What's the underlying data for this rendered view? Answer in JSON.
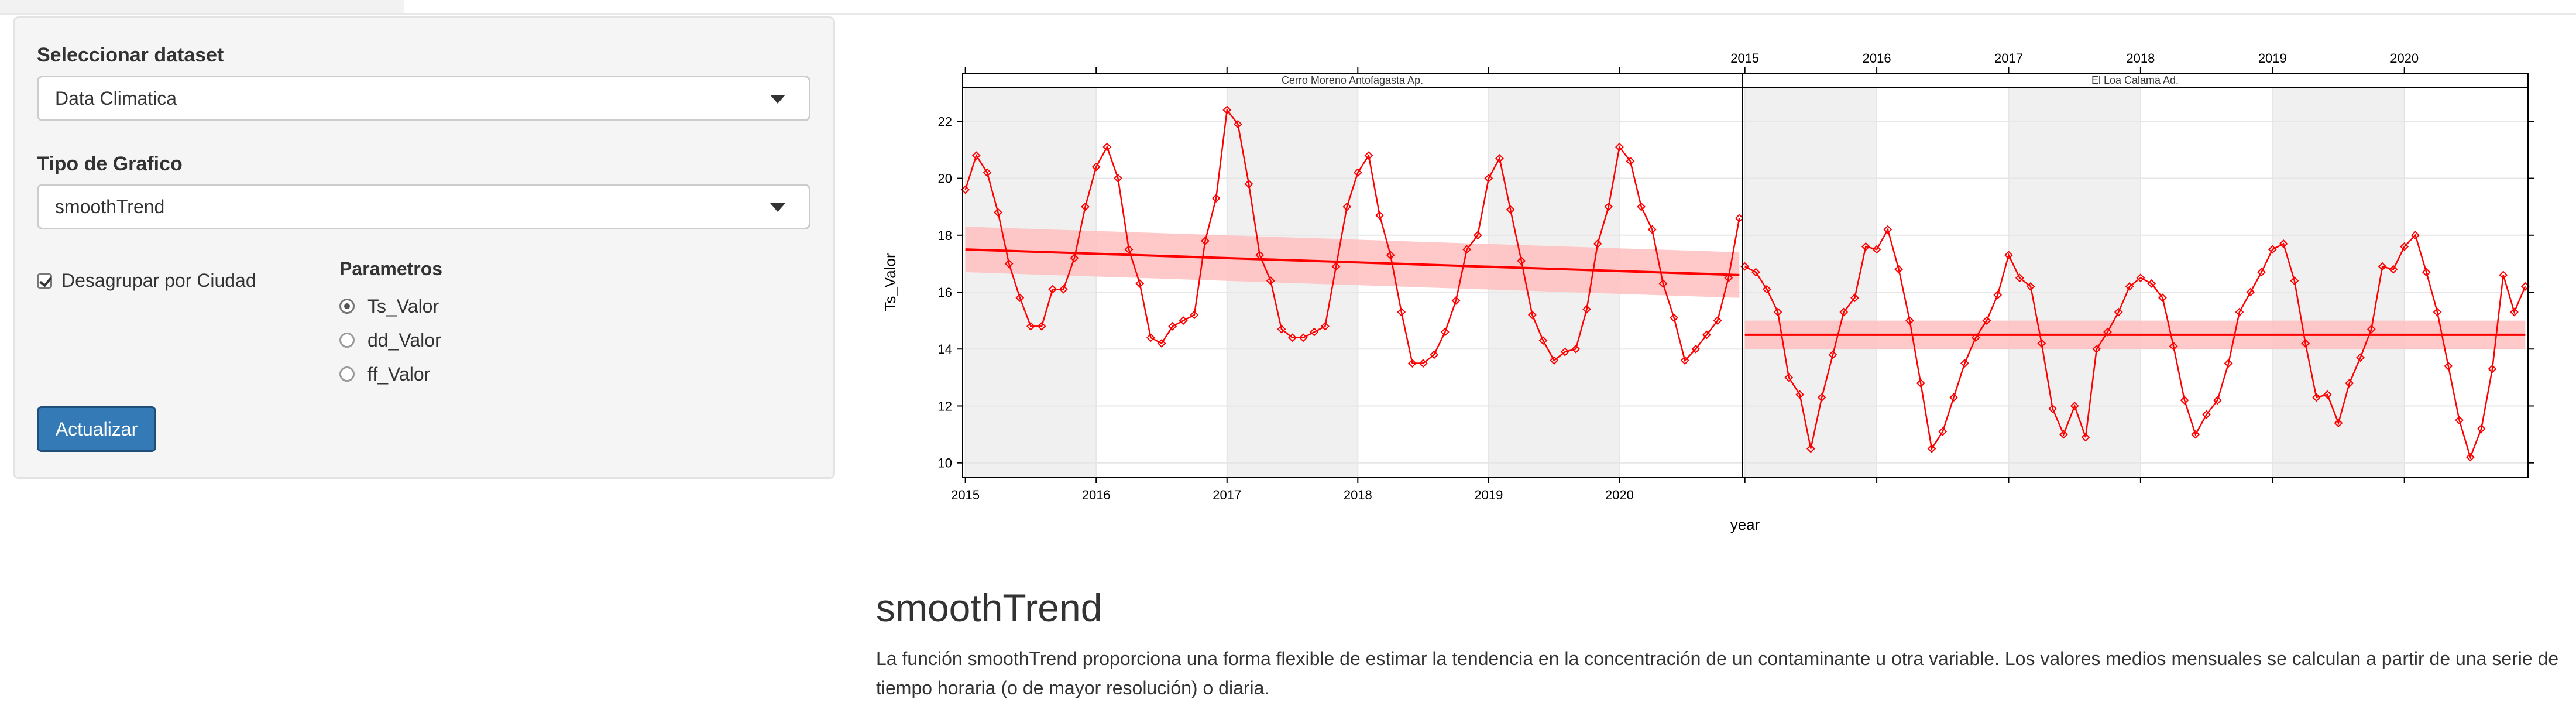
{
  "sidebar": {
    "dataset_label": "Seleccionar dataset",
    "dataset_value": "Data Climatica",
    "chart_type_label": "Tipo de Grafico",
    "chart_type_value": "smoothTrend",
    "ungroup_label": "Desagrupar por Ciudad",
    "ungroup_checked": true,
    "params_title": "Parametros",
    "params": [
      {
        "label": "Ts_Valor",
        "selected": true
      },
      {
        "label": "dd_Valor",
        "selected": false
      },
      {
        "label": "ff_Valor",
        "selected": false
      }
    ],
    "update_button": "Actualizar"
  },
  "main": {
    "title": "smoothTrend",
    "description": "La función smoothTrend proporciona una forma flexible de estimar la tendencia en la concentración de un contaminante u otra variable. Los valores medios mensuales se calculan a partir de una serie de tiempo horaria (o de mayor resolución) o diaria."
  },
  "chart_data": {
    "type": "line",
    "xlabel": "year",
    "ylabel": "Ts_Valor",
    "ylim": [
      9.5,
      23.2
    ],
    "yticks": [
      10,
      12,
      14,
      16,
      18,
      20,
      22
    ],
    "xticks": [
      "2015",
      "2016",
      "2017",
      "2018",
      "2019",
      "2020"
    ],
    "line_color": "#ff0000",
    "band_color": "#ffc0c0",
    "shade_color": "#f0f0f0",
    "panels": [
      {
        "title": "Cerro Moreno Antofagasta Ap.",
        "trend_start": 17.5,
        "trend_end": 16.6,
        "band_start": [
          16.7,
          18.3
        ],
        "band_end": [
          15.8,
          17.4
        ],
        "values": [
          19.6,
          20.8,
          20.2,
          18.8,
          17.0,
          15.8,
          14.8,
          14.8,
          16.1,
          16.1,
          17.2,
          19.0,
          20.4,
          21.1,
          20.0,
          17.5,
          16.3,
          14.4,
          14.2,
          14.8,
          15.0,
          15.2,
          17.8,
          19.3,
          22.4,
          21.9,
          19.8,
          17.3,
          16.4,
          14.7,
          14.4,
          14.4,
          14.6,
          14.8,
          16.9,
          19.0,
          20.2,
          20.8,
          18.7,
          17.3,
          15.3,
          13.5,
          13.5,
          13.8,
          14.6,
          15.7,
          17.5,
          18.0,
          20.0,
          20.7,
          18.9,
          17.1,
          15.2,
          14.3,
          13.6,
          13.9,
          14.0,
          15.4,
          17.7,
          19.0,
          21.1,
          20.6,
          19.0,
          18.2,
          16.3,
          15.1,
          13.6,
          14.0,
          14.5,
          15.0,
          16.5,
          18.6
        ]
      },
      {
        "title": "El Loa Calama Ad.",
        "trend_start": 14.5,
        "trend_end": 14.5,
        "band_start": [
          14.0,
          15.0
        ],
        "band_end": [
          14.0,
          15.0
        ],
        "values": [
          16.9,
          16.7,
          16.1,
          15.3,
          13.0,
          12.4,
          10.5,
          12.3,
          13.8,
          15.3,
          15.8,
          17.6,
          17.5,
          18.2,
          16.8,
          15.0,
          12.8,
          10.5,
          11.1,
          12.3,
          13.5,
          14.4,
          15.0,
          15.9,
          17.3,
          16.5,
          16.2,
          14.2,
          11.9,
          11.0,
          12.0,
          10.9,
          14.0,
          14.6,
          15.3,
          16.2,
          16.5,
          16.3,
          15.8,
          14.1,
          12.2,
          11.0,
          11.7,
          12.2,
          13.5,
          15.3,
          16.0,
          16.7,
          17.5,
          17.7,
          16.4,
          14.2,
          12.3,
          12.4,
          11.4,
          12.8,
          13.7,
          14.7,
          16.9,
          16.8,
          17.6,
          18.0,
          16.7,
          15.3,
          13.4,
          11.5,
          10.2,
          11.2,
          13.3,
          16.6,
          15.3,
          16.2
        ]
      }
    ]
  }
}
